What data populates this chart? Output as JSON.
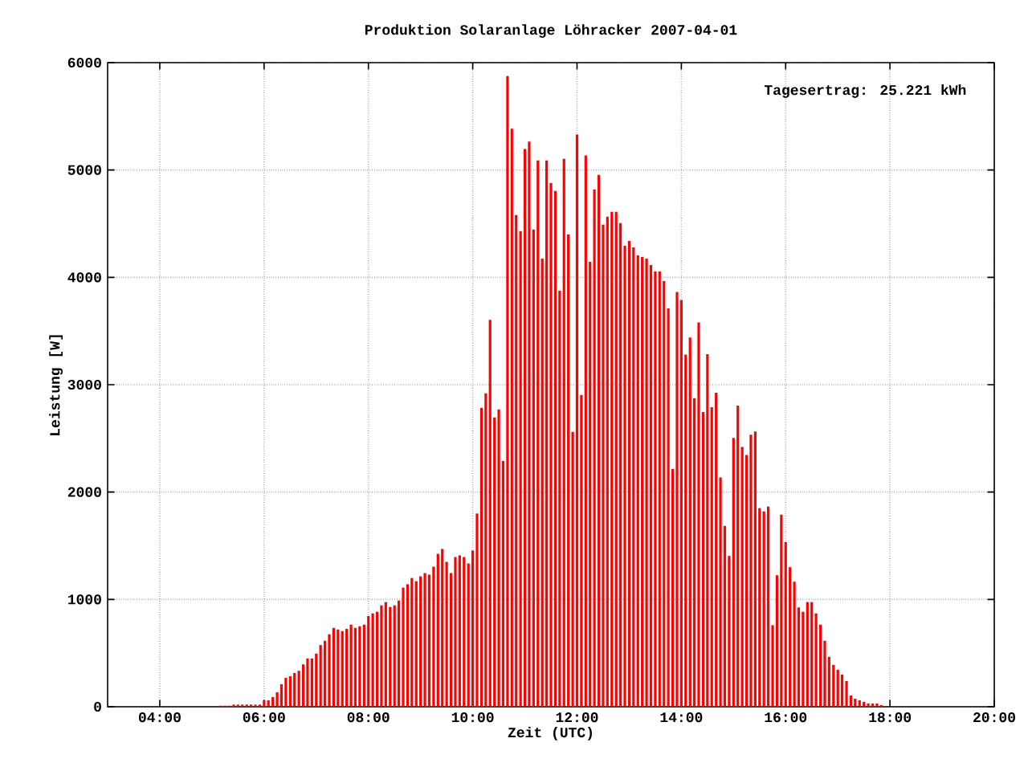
{
  "chart_data": {
    "type": "bar",
    "title": "Produktion Solaranlage Löhracker 2007-04-01",
    "xlabel": "Zeit (UTC)",
    "ylabel": "Leistung [W]",
    "annotations": [
      "Tagesertrag: 25.221 kWh"
    ],
    "color": "#ff0000",
    "x": [
      5.167,
      5.25,
      5.333,
      5.417,
      5.5,
      5.583,
      5.667,
      5.75,
      5.833,
      5.917,
      6,
      6.083,
      6.167,
      6.25,
      6.333,
      6.417,
      6.5,
      6.583,
      6.667,
      6.75,
      6.833,
      6.917,
      7,
      7.083,
      7.167,
      7.25,
      7.333,
      7.417,
      7.5,
      7.583,
      7.667,
      7.75,
      7.833,
      7.917,
      8,
      8.083,
      8.167,
      8.25,
      8.333,
      8.417,
      8.5,
      8.583,
      8.667,
      8.75,
      8.833,
      8.917,
      9,
      9.083,
      9.167,
      9.25,
      9.333,
      9.417,
      9.5,
      9.583,
      9.667,
      9.75,
      9.833,
      9.917,
      10,
      10.083,
      10.167,
      10.25,
      10.333,
      10.417,
      10.5,
      10.583,
      10.667,
      10.75,
      10.833,
      10.917,
      11,
      11.083,
      11.167,
      11.25,
      11.333,
      11.417,
      11.5,
      11.583,
      11.667,
      11.75,
      11.833,
      11.917,
      12,
      12.083,
      12.167,
      12.25,
      12.333,
      12.417,
      12.5,
      12.583,
      12.667,
      12.75,
      12.833,
      12.917,
      13,
      13.083,
      13.167,
      13.25,
      13.333,
      13.417,
      13.5,
      13.583,
      13.667,
      13.75,
      13.833,
      13.917,
      14,
      14.083,
      14.167,
      14.25,
      14.333,
      14.417,
      14.5,
      14.583,
      14.667,
      14.75,
      14.833,
      14.917,
      15,
      15.083,
      15.167,
      15.25,
      15.333,
      15.417,
      15.5,
      15.583,
      15.667,
      15.75,
      15.833,
      15.917,
      16,
      16.083,
      16.167,
      16.25,
      16.333,
      16.417,
      16.5,
      16.583,
      16.667,
      16.75,
      16.833,
      16.917,
      17,
      17.083,
      17.167,
      17.25,
      17.333,
      17.417,
      17.5,
      17.583,
      17.667,
      17.75,
      17.833
    ],
    "values": [
      10,
      10,
      10,
      20,
      20,
      20,
      20,
      20,
      20,
      20,
      60,
      60,
      90,
      135,
      210,
      270,
      285,
      315,
      335,
      395,
      450,
      450,
      495,
      575,
      615,
      675,
      735,
      720,
      705,
      725,
      765,
      735,
      750,
      765,
      845,
      870,
      885,
      945,
      975,
      930,
      945,
      990,
      1110,
      1140,
      1200,
      1170,
      1215,
      1245,
      1230,
      1305,
      1425,
      1470,
      1350,
      1245,
      1395,
      1410,
      1395,
      1335,
      1455,
      1800,
      2785,
      2920,
      3605,
      2695,
      2770,
      2290,
      5875,
      5385,
      4580,
      4430,
      5195,
      5265,
      4445,
      5090,
      4175,
      5090,
      4880,
      4805,
      3875,
      5105,
      4400,
      2560,
      5330,
      2905,
      5135,
      4145,
      4820,
      4955,
      4490,
      4565,
      4610,
      4610,
      4505,
      4295,
      4340,
      4280,
      4205,
      4190,
      4175,
      4115,
      4055,
      4055,
      3965,
      3710,
      2215,
      3865,
      3790,
      3280,
      3440,
      2875,
      3580,
      2745,
      3285,
      2790,
      2925,
      2135,
      1685,
      1405,
      2505,
      2805,
      2420,
      2345,
      2535,
      2565,
      1850,
      1820,
      1865,
      760,
      1225,
      1790,
      1535,
      1300,
      1165,
      925,
      885,
      975,
      975,
      870,
      765,
      615,
      465,
      390,
      345,
      300,
      240,
      105,
      75,
      60,
      45,
      30,
      30,
      30,
      15
    ],
    "xlim": [
      3,
      20
    ],
    "xticks": [
      {
        "value": 4,
        "label": "04:00"
      },
      {
        "value": 6,
        "label": "06:00"
      },
      {
        "value": 8,
        "label": "08:00"
      },
      {
        "value": 10,
        "label": "10:00"
      },
      {
        "value": 12,
        "label": "12:00"
      },
      {
        "value": 14,
        "label": "14:00"
      },
      {
        "value": 16,
        "label": "16:00"
      },
      {
        "value": 18,
        "label": "18:00"
      },
      {
        "value": 20,
        "label": "20:00"
      }
    ],
    "ylim": [
      0,
      6000
    ],
    "yticks": [
      0,
      1000,
      2000,
      3000,
      4000,
      5000,
      6000
    ],
    "grid": true
  }
}
